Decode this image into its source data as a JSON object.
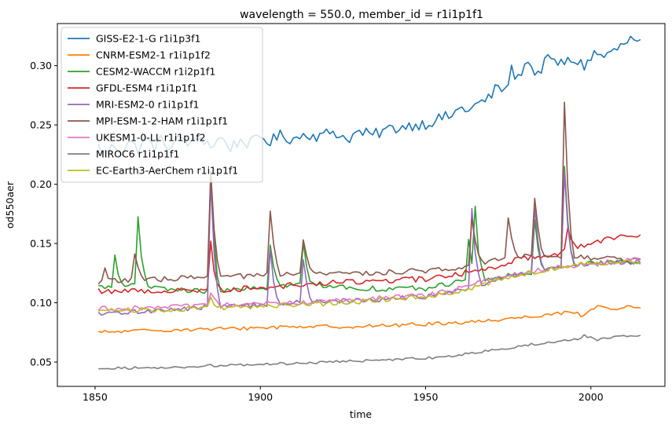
{
  "chart_data": {
    "type": "line",
    "title": "wavelength = 550.0, member_id = r1i1p1f1",
    "xlabel": "time",
    "ylabel": "od550aer",
    "xlim": [
      1838.6,
      2022.4
    ],
    "ylim": [
      0.0295,
      0.3355
    ],
    "xticks": [
      1850,
      1900,
      1950,
      2000
    ],
    "xtick_labels": [
      "1850",
      "1900",
      "1950",
      "2000"
    ],
    "yticks": [
      0.05,
      0.1,
      0.15,
      0.2,
      0.25,
      0.3
    ],
    "ytick_labels": [
      "0.05",
      "0.10",
      "0.15",
      "0.20",
      "0.25",
      "0.30"
    ],
    "grid": false,
    "legend_position": "upper-left",
    "x_start": 1851,
    "x_end": 2015,
    "series": [
      {
        "name": "GISS-E2-1-G r1i1p3f1",
        "color": "#1f77b4",
        "knots": [
          [
            1851,
            0.232
          ],
          [
            1853,
            0.226
          ],
          [
            1856,
            0.233
          ],
          [
            1858,
            0.228
          ],
          [
            1860,
            0.236
          ],
          [
            1863,
            0.23
          ],
          [
            1865,
            0.238
          ],
          [
            1868,
            0.232
          ],
          [
            1870,
            0.237
          ],
          [
            1873,
            0.231
          ],
          [
            1876,
            0.24
          ],
          [
            1879,
            0.233
          ],
          [
            1882,
            0.24
          ],
          [
            1885,
            0.232
          ],
          [
            1888,
            0.239
          ],
          [
            1891,
            0.231
          ],
          [
            1894,
            0.237
          ],
          [
            1897,
            0.234
          ],
          [
            1900,
            0.24
          ],
          [
            1903,
            0.236
          ],
          [
            1906,
            0.241
          ],
          [
            1910,
            0.238
          ],
          [
            1914,
            0.243
          ],
          [
            1918,
            0.24
          ],
          [
            1922,
            0.245
          ],
          [
            1926,
            0.238
          ],
          [
            1930,
            0.244
          ],
          [
            1934,
            0.241
          ],
          [
            1938,
            0.246
          ],
          [
            1942,
            0.248
          ],
          [
            1946,
            0.25
          ],
          [
            1950,
            0.251
          ],
          [
            1954,
            0.255
          ],
          [
            1958,
            0.258
          ],
          [
            1961,
            0.265
          ],
          [
            1963,
            0.262
          ],
          [
            1966,
            0.268
          ],
          [
            1969,
            0.272
          ],
          [
            1972,
            0.283
          ],
          [
            1974,
            0.278
          ],
          [
            1976,
            0.296
          ],
          [
            1978,
            0.289
          ],
          [
            1980,
            0.303
          ],
          [
            1982,
            0.3
          ],
          [
            1984,
            0.291
          ],
          [
            1986,
            0.305
          ],
          [
            1989,
            0.303
          ],
          [
            1992,
            0.302
          ],
          [
            1995,
            0.305
          ],
          [
            1998,
            0.3
          ],
          [
            2001,
            0.31
          ],
          [
            2004,
            0.308
          ],
          [
            2007,
            0.312
          ],
          [
            2010,
            0.318
          ],
          [
            2012,
            0.322
          ],
          [
            2015,
            0.318
          ]
        ],
        "spikes": []
      },
      {
        "name": "CNRM-ESM2-1 r1i1p1f2",
        "color": "#ff7f0e",
        "knots": [
          [
            1851,
            0.075
          ],
          [
            1870,
            0.077
          ],
          [
            1890,
            0.078
          ],
          [
            1910,
            0.08
          ],
          [
            1930,
            0.08
          ],
          [
            1950,
            0.082
          ],
          [
            1965,
            0.084
          ],
          [
            1980,
            0.088
          ],
          [
            1990,
            0.091
          ],
          [
            2000,
            0.094
          ],
          [
            2010,
            0.096
          ],
          [
            2015,
            0.096
          ]
        ],
        "spikes": [
          [
            1997,
            -0.006
          ],
          [
            2002,
            0.004
          ]
        ]
      },
      {
        "name": "CESM2-WACCM r1i2p1f1",
        "color": "#2ca02c",
        "knots": [
          [
            1851,
            0.113
          ],
          [
            1860,
            0.115
          ],
          [
            1870,
            0.112
          ],
          [
            1880,
            0.11
          ],
          [
            1890,
            0.11
          ],
          [
            1900,
            0.112
          ],
          [
            1910,
            0.115
          ],
          [
            1920,
            0.115
          ],
          [
            1930,
            0.112
          ],
          [
            1940,
            0.112
          ],
          [
            1950,
            0.112
          ],
          [
            1960,
            0.118
          ],
          [
            1970,
            0.12
          ],
          [
            1980,
            0.125
          ],
          [
            1990,
            0.13
          ],
          [
            2000,
            0.133
          ],
          [
            2015,
            0.135
          ]
        ],
        "spikes": [
          [
            1856,
            0.026
          ],
          [
            1863,
            0.058
          ],
          [
            1885,
            0.095
          ],
          [
            1903,
            0.038
          ],
          [
            1913,
            0.035
          ],
          [
            1963,
            0.035
          ],
          [
            1965,
            0.055
          ],
          [
            1983,
            0.045
          ],
          [
            1992,
            0.085
          ]
        ]
      },
      {
        "name": "GFDL-ESM4 r1i1p1f1",
        "color": "#d62728",
        "knots": [
          [
            1851,
            0.11
          ],
          [
            1870,
            0.11
          ],
          [
            1890,
            0.111
          ],
          [
            1910,
            0.115
          ],
          [
            1930,
            0.118
          ],
          [
            1950,
            0.12
          ],
          [
            1960,
            0.124
          ],
          [
            1970,
            0.13
          ],
          [
            1980,
            0.138
          ],
          [
            1990,
            0.142
          ],
          [
            2000,
            0.15
          ],
          [
            2010,
            0.158
          ],
          [
            2015,
            0.157
          ]
        ],
        "spikes": [
          [
            1885,
            0.04
          ],
          [
            1993,
            0.02
          ]
        ]
      },
      {
        "name": "MRI-ESM2-0 r1i1p1f1",
        "color": "#9467bd",
        "knots": [
          [
            1851,
            0.09
          ],
          [
            1870,
            0.094
          ],
          [
            1890,
            0.097
          ],
          [
            1910,
            0.1
          ],
          [
            1930,
            0.102
          ],
          [
            1950,
            0.105
          ],
          [
            1960,
            0.11
          ],
          [
            1970,
            0.118
          ],
          [
            1980,
            0.125
          ],
          [
            1990,
            0.13
          ],
          [
            2000,
            0.133
          ],
          [
            2015,
            0.135
          ]
        ],
        "spikes": [
          [
            1885,
            0.105
          ],
          [
            1903,
            0.045
          ],
          [
            1913,
            0.035
          ],
          [
            1964,
            0.065
          ],
          [
            1983,
            0.055
          ],
          [
            1992,
            0.08
          ]
        ]
      },
      {
        "name": "MPI-ESM-1-2-HAM r1i1p1f1",
        "color": "#8c564b",
        "knots": [
          [
            1851,
            0.118
          ],
          [
            1870,
            0.12
          ],
          [
            1890,
            0.122
          ],
          [
            1910,
            0.124
          ],
          [
            1930,
            0.125
          ],
          [
            1950,
            0.127
          ],
          [
            1960,
            0.13
          ],
          [
            1970,
            0.136
          ],
          [
            1980,
            0.14
          ],
          [
            1990,
            0.14
          ],
          [
            2000,
            0.138
          ],
          [
            2015,
            0.136
          ]
        ],
        "spikes": [
          [
            1853,
            0.01
          ],
          [
            1862,
            0.02
          ],
          [
            1885,
            0.09
          ],
          [
            1903,
            0.055
          ],
          [
            1913,
            0.03
          ],
          [
            1964,
            0.04
          ],
          [
            1975,
            0.035
          ],
          [
            1983,
            0.05
          ],
          [
            1992,
            0.128
          ]
        ]
      },
      {
        "name": "UKESM1-0-LL r1i1p1f2",
        "color": "#e377c2",
        "knots": [
          [
            1851,
            0.095
          ],
          [
            1870,
            0.096
          ],
          [
            1890,
            0.098
          ],
          [
            1910,
            0.1
          ],
          [
            1930,
            0.103
          ],
          [
            1950,
            0.106
          ],
          [
            1960,
            0.112
          ],
          [
            1970,
            0.12
          ],
          [
            1980,
            0.126
          ],
          [
            1990,
            0.13
          ],
          [
            2000,
            0.133
          ],
          [
            2015,
            0.137
          ]
        ],
        "spikes": [
          [
            1885,
            0.012
          ]
        ]
      },
      {
        "name": "MIROC6 r1i1p1f1",
        "color": "#7f7f7f",
        "knots": [
          [
            1851,
            0.045
          ],
          [
            1870,
            0.045
          ],
          [
            1885,
            0.047
          ],
          [
            1900,
            0.048
          ],
          [
            1920,
            0.05
          ],
          [
            1940,
            0.052
          ],
          [
            1955,
            0.054
          ],
          [
            1965,
            0.058
          ],
          [
            1975,
            0.062
          ],
          [
            1985,
            0.066
          ],
          [
            1995,
            0.069
          ],
          [
            2005,
            0.071
          ],
          [
            2015,
            0.072
          ]
        ],
        "spikes": [
          [
            1998,
            0.004
          ],
          [
            2002,
            -0.003
          ]
        ]
      },
      {
        "name": "EC-Earth3-AerChem r1i1p1f1",
        "color": "#bcbd22",
        "knots": [
          [
            1851,
            0.094
          ],
          [
            1870,
            0.094
          ],
          [
            1890,
            0.096
          ],
          [
            1910,
            0.098
          ],
          [
            1930,
            0.101
          ],
          [
            1950,
            0.105
          ],
          [
            1960,
            0.11
          ],
          [
            1970,
            0.117
          ],
          [
            1980,
            0.124
          ],
          [
            1990,
            0.13
          ],
          [
            2000,
            0.134
          ],
          [
            2015,
            0.134
          ]
        ],
        "spikes": [
          [
            1885,
            0.008
          ]
        ]
      }
    ]
  }
}
